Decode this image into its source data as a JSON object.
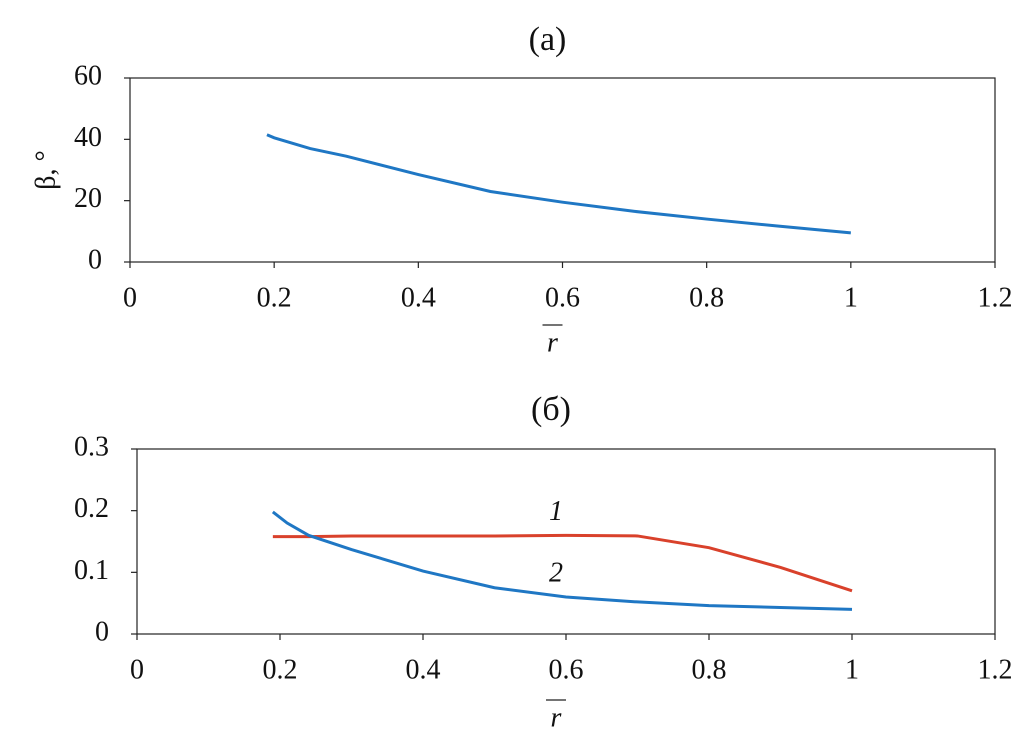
{
  "chart_data": [
    {
      "type": "line",
      "title": "(а)",
      "ylabel": "β, °",
      "xlabel": "r",
      "x": [
        0.19,
        0.2,
        0.25,
        0.3,
        0.4,
        0.5,
        0.6,
        0.7,
        0.8,
        0.9,
        1
      ],
      "series": [
        {
          "name": null,
          "color": "#1f77c4",
          "values": [
            41.5,
            40.5,
            37,
            34.5,
            28.5,
            23,
            19.5,
            16.5,
            14,
            11.7,
            9.5
          ]
        }
      ],
      "xlim": [
        0,
        1.2
      ],
      "xticks": [
        0,
        0.2,
        0.4,
        0.6,
        0.8,
        1,
        1.2
      ],
      "ylim": [
        0,
        60
      ],
      "yticks": [
        0,
        20,
        40,
        60
      ]
    },
    {
      "type": "line",
      "title": "(б)",
      "xlabel": "r",
      "x": [
        0.19,
        0.21,
        0.24,
        0.3,
        0.4,
        0.5,
        0.6,
        0.7,
        0.8,
        0.9,
        1
      ],
      "series": [
        {
          "name": "1",
          "color": "#d9412b",
          "values": [
            0.158,
            0.158,
            0.158,
            0.159,
            0.159,
            0.159,
            0.16,
            0.159,
            0.14,
            0.108,
            0.07
          ]
        },
        {
          "name": "2",
          "color": "#1f77c4",
          "values": [
            0.198,
            0.18,
            0.16,
            0.137,
            0.102,
            0.075,
            0.06,
            0.052,
            0.046,
            0.043,
            0.04
          ]
        }
      ],
      "xlim": [
        0,
        1.2
      ],
      "xticks": [
        0,
        0.2,
        0.4,
        0.6,
        0.8,
        1,
        1.2
      ],
      "ylim": [
        0,
        0.3
      ],
      "yticks": [
        0,
        0.1,
        0.2,
        0.3
      ]
    }
  ]
}
